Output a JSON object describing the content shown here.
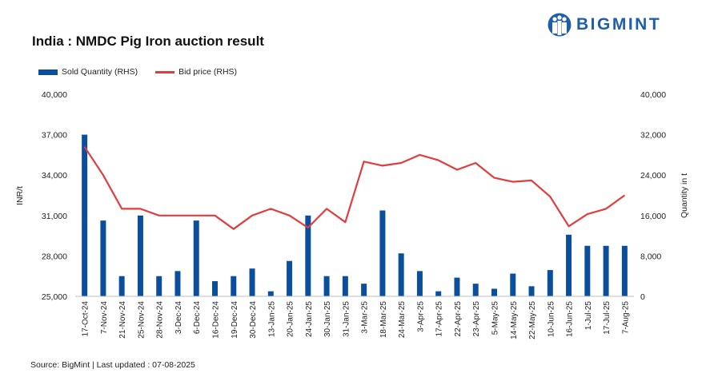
{
  "header": {
    "title": "India : NMDC Pig Iron auction result",
    "brand": "BIGMINT",
    "source": "Source: BigMint | Last updated : 07-08-2025"
  },
  "colors": {
    "bar": "#0b4f9c",
    "line": "#e23c3c",
    "brand": "#1f5fa8"
  },
  "chart_data": {
    "type": "bar-line",
    "title": "India : NMDC Pig Iron auction result",
    "categories": [
      "17-Oct-24",
      "7-Nov-24",
      "21-Nov-24",
      "25-Nov-24",
      "28-Nov-24",
      "3-Dec-24",
      "6-Dec-24",
      "16-Dec-24",
      "19-Dec-24",
      "30-Dec-24",
      "13-Jan-25",
      "20-Jan-25",
      "24-Jan-25",
      "30-Jan-25",
      "31-Jan-25",
      "3-Mar-25",
      "18-Mar-25",
      "24-Mar-25",
      "3-Apr-25",
      "17-Apr-25",
      "22-Apr-25",
      "23-Apr-25",
      "5-May-25",
      "14-May-25",
      "22-May-25",
      "10-Jun-25",
      "16-Jun-25",
      "1-Jul-25",
      "17-Jul-25",
      "7-Aug-25"
    ],
    "series": [
      {
        "name": "Sold Quantity (RHS)",
        "type": "bar",
        "axis": "right",
        "values": [
          32000,
          15000,
          4000,
          16000,
          4000,
          5000,
          15000,
          3000,
          4000,
          5500,
          1000,
          7000,
          16000,
          4000,
          4000,
          2500,
          17000,
          8500,
          5000,
          1000,
          3700,
          2500,
          1500,
          4500,
          2000,
          5200,
          12200,
          10000,
          10000,
          10000
        ]
      },
      {
        "name": "Bid price (RHS)",
        "type": "line",
        "axis": "left",
        "values": [
          36100,
          34000,
          31500,
          31500,
          31000,
          31000,
          31000,
          31000,
          30000,
          31000,
          31500,
          31000,
          30100,
          31500,
          30500,
          35000,
          34700,
          34900,
          35500,
          35100,
          34400,
          34900,
          33800,
          33500,
          33600,
          32400,
          30200,
          31100,
          31500,
          32500
        ]
      }
    ],
    "ylabel": "INR/t",
    "y2label": "Quantity in t",
    "ylim": [
      25000,
      40000
    ],
    "yticks": [
      "25,000",
      "28,000",
      "31,000",
      "34,000",
      "37,000",
      "40,000"
    ],
    "y2lim": [
      0,
      40000
    ],
    "y2ticks": [
      "0",
      "8,000",
      "16,000",
      "24,000",
      "32,000",
      "40,000"
    ],
    "legend": "top-left",
    "grid": false
  }
}
